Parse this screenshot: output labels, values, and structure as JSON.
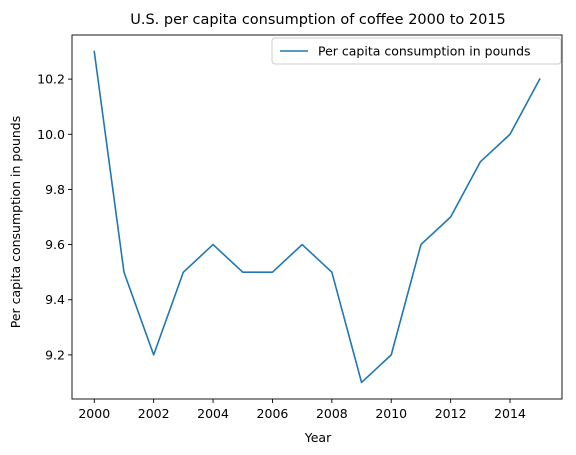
{
  "chart_data": {
    "type": "line",
    "title": "U.S. per capita consumption of coffee 2000 to 2015",
    "xlabel": "Year",
    "ylabel": "Per capita consumption in pounds",
    "x": [
      2000,
      2001,
      2002,
      2003,
      2004,
      2005,
      2006,
      2007,
      2008,
      2009,
      2010,
      2011,
      2012,
      2013,
      2014,
      2015
    ],
    "series": [
      {
        "name": "Per capita consumption in pounds",
        "values": [
          10.3,
          9.5,
          9.2,
          9.5,
          9.6,
          9.5,
          9.5,
          9.6,
          9.5,
          9.1,
          9.2,
          9.6,
          9.7,
          9.9,
          10.0,
          10.2
        ],
        "color": "#1f77b4"
      }
    ],
    "xlim": [
      1999.25,
      2015.75
    ],
    "ylim": [
      9.04,
      10.36
    ],
    "x_ticks": [
      2000,
      2002,
      2004,
      2006,
      2008,
      2010,
      2012,
      2014
    ],
    "y_ticks": [
      9.2,
      9.4,
      9.6,
      9.8,
      10.0,
      10.2
    ],
    "y_tick_labels": [
      "9.2",
      "9.4",
      "9.6",
      "9.8",
      "10.0",
      "10.2"
    ],
    "grid": false,
    "legend_position": "upper right"
  }
}
